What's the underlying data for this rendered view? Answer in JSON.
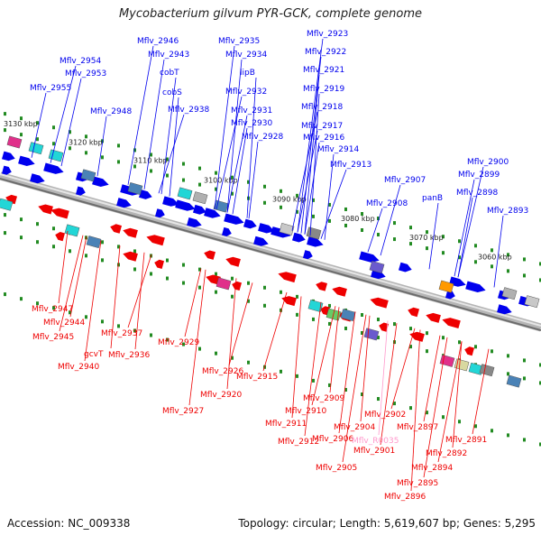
{
  "title": "Mycobacterium gilvum PYR-GCK, complete genome",
  "footer": {
    "accession": "Accession: NC_009338",
    "summary": "Topology: circular; Length: 5,619,607 bp; Genes: 5,295"
  },
  "colors": {
    "plus_strand": "#0000ee",
    "minus_strand": "#ee0000",
    "rna_label": "#ff99cc",
    "tick": "#228b22",
    "axis": "#888888"
  },
  "scale_labels": [
    "3130 kbp",
    "3120 kbp",
    "3110 kbp",
    "3100 kbp",
    "3090 kbp",
    "3080 kbp",
    "3070 kbp",
    "3060 kbp"
  ],
  "top_labels": [
    "Mflv_2954",
    "Mflv_2953",
    "Mflv_2955",
    "Mflv_2948",
    "Mflv_2946",
    "Mflv_2943",
    "cobT",
    "cobS",
    "Mflv_2938",
    "Mflv_2935",
    "Mflv_2934",
    "lipB",
    "Mflv_2932",
    "Mflv_2931",
    "Mflv_2930",
    "Mflv_2928",
    "Mflv_2923",
    "Mflv_2922",
    "Mflv_2921",
    "Mflv_2919",
    "Mflv_2918",
    "Mflv_2917",
    "Mflv_2916",
    "Mflv_2914",
    "Mflv_2913",
    "Mflv_2907",
    "Mflv_2908",
    "panB",
    "Mflv_2900",
    "Mflv_2899",
    "Mflv_2898",
    "Mflv_2893"
  ],
  "bottom_labels": [
    "Mflv_2947",
    "Mflv_2944",
    "Mflv_2945",
    "gcvT",
    "Mflv_2940",
    "Mflv_2937",
    "Mflv_2936",
    "Mflv_2929",
    "Mflv_2926",
    "Mflv_2920",
    "Mflv_2927",
    "Mflv_2915",
    "Mflv_2911",
    "Mflv_2912",
    "Mflv_2910",
    "Mflv_2909",
    "Mflv_2906",
    "Mflv_2905",
    "Mflv_2904",
    "Mflv_2901",
    "Mflv_2902",
    "Mflv_R0035",
    "Mflv_2897",
    "Mflv_2894",
    "Mflv_2892",
    "Mflv_2891",
    "Mflv_2895",
    "Mflv_2896"
  ]
}
